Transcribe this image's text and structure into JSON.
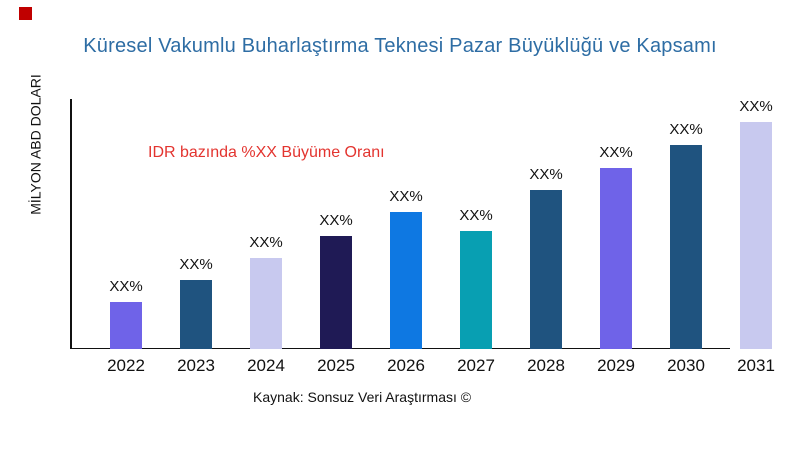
{
  "chart_data": {
    "type": "bar",
    "title": "Küresel Vakumlu Buharlaştırma Teknesi Pazar Büyüklüğü ve Kapsamı",
    "ylabel": "MİLYON ABD DOLARI",
    "xlabel": "",
    "annotation": "IDR bazında %XX Büyüme Oranı",
    "source": "Kaynak: Sonsuz Veri Araştırması ©",
    "categories": [
      "2022",
      "2023",
      "2024",
      "2025",
      "2026",
      "2027",
      "2028",
      "2029",
      "2030",
      "2031"
    ],
    "values": [
      47,
      69,
      91,
      113,
      137,
      118,
      159,
      181,
      204,
      227
    ],
    "bar_labels": [
      "XX%",
      "XX%",
      "XX%",
      "XX%",
      "XX%",
      "XX%",
      "XX%",
      "XX%",
      "XX%",
      "XX%"
    ],
    "bar_colors": [
      "#6F63E8",
      "#1F537F",
      "#C8C9EF",
      "#1F1A55",
      "#0E78E2",
      "#089FB2",
      "#1F537F",
      "#6F63E8",
      "#1F537F",
      "#C8C9EF"
    ],
    "ylim": [
      0,
      250
    ],
    "grid": false,
    "legend": false,
    "colors": {
      "title": "#2E6DA4",
      "annotation": "#E3342F",
      "axis": "#111111",
      "text": "#111111",
      "logo": "#C00000"
    }
  }
}
